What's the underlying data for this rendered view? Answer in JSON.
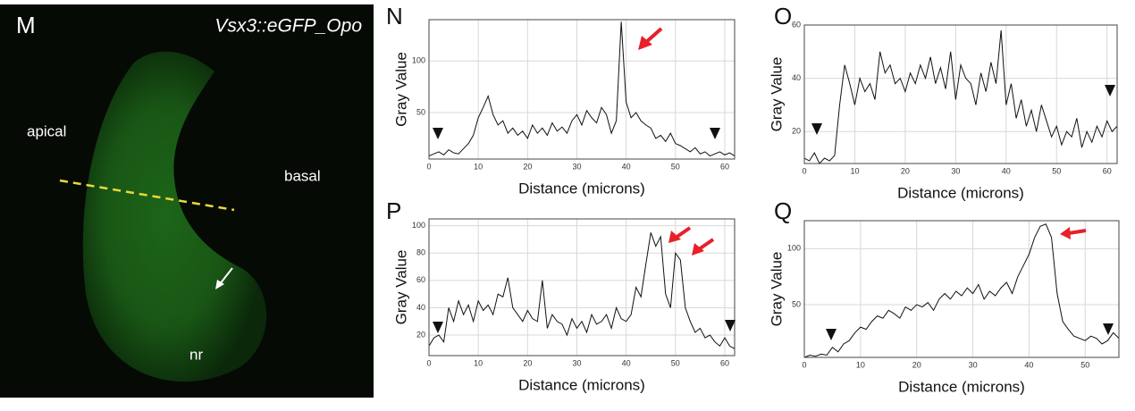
{
  "image_panel": {
    "panel_label": "M",
    "title": "Vsx3::eGFP_Opo",
    "label_apical": "apical",
    "label_basal": "basal",
    "label_nr": "nr"
  },
  "chart_data": [
    {
      "type": "line",
      "panel_label": "N",
      "xlabel": "Distance (microns)",
      "ylabel": "Gray Value",
      "grid": true,
      "xlim": [
        0,
        62
      ],
      "ylim": [
        5,
        140
      ],
      "xticks": [
        0,
        10,
        20,
        30,
        40,
        50,
        60
      ],
      "yticks": [
        50,
        100
      ],
      "x": [
        0,
        1,
        2,
        3,
        4,
        5,
        6,
        7,
        8,
        9,
        10,
        11,
        12,
        13,
        14,
        15,
        16,
        17,
        18,
        19,
        20,
        21,
        22,
        23,
        24,
        25,
        26,
        27,
        28,
        29,
        30,
        31,
        32,
        33,
        34,
        35,
        36,
        37,
        38,
        39,
        40,
        41,
        42,
        43,
        44,
        45,
        46,
        47,
        48,
        49,
        50,
        51,
        52,
        53,
        54,
        55,
        56,
        57,
        58,
        59,
        60,
        61,
        62
      ],
      "series": [
        {
          "color": "#111111",
          "values": [
            8,
            10,
            12,
            9,
            14,
            11,
            10,
            15,
            20,
            28,
            45,
            55,
            66,
            48,
            38,
            42,
            30,
            35,
            28,
            32,
            25,
            38,
            30,
            35,
            28,
            40,
            32,
            36,
            30,
            42,
            48,
            38,
            52,
            45,
            40,
            55,
            48,
            30,
            42,
            138,
            60,
            45,
            50,
            42,
            38,
            35,
            25,
            28,
            22,
            30,
            20,
            18,
            15,
            12,
            16,
            10,
            12,
            8,
            10,
            12,
            9,
            11,
            8
          ]
        }
      ]
    },
    {
      "type": "line",
      "panel_label": "O",
      "xlabel": "Distance (microns)",
      "ylabel": "Gray Value",
      "grid": true,
      "xlim": [
        0,
        62
      ],
      "ylim": [
        8,
        60
      ],
      "xticks": [
        0,
        10,
        20,
        30,
        40,
        50,
        60
      ],
      "yticks": [
        20,
        40,
        60
      ],
      "x": [
        0,
        1,
        2,
        3,
        4,
        5,
        6,
        7,
        8,
        9,
        10,
        11,
        12,
        13,
        14,
        15,
        16,
        17,
        18,
        19,
        20,
        21,
        22,
        23,
        24,
        25,
        26,
        27,
        28,
        29,
        30,
        31,
        32,
        33,
        34,
        35,
        36,
        37,
        38,
        39,
        40,
        41,
        42,
        43,
        44,
        45,
        46,
        47,
        48,
        49,
        50,
        51,
        52,
        53,
        54,
        55,
        56,
        57,
        58,
        59,
        60,
        61,
        62
      ],
      "series": [
        {
          "color": "#111111",
          "values": [
            10,
            9,
            12,
            8,
            10,
            9,
            11,
            30,
            45,
            38,
            30,
            40,
            35,
            38,
            32,
            50,
            42,
            45,
            38,
            40,
            35,
            42,
            38,
            45,
            40,
            48,
            38,
            44,
            36,
            50,
            32,
            45,
            40,
            38,
            30,
            42,
            35,
            46,
            38,
            58,
            30,
            38,
            25,
            32,
            22,
            28,
            20,
            30,
            24,
            18,
            22,
            15,
            20,
            18,
            25,
            14,
            20,
            16,
            22,
            18,
            24,
            20,
            22
          ]
        }
      ]
    },
    {
      "type": "line",
      "panel_label": "P",
      "xlabel": "Distance (microns)",
      "ylabel": "Gray Value",
      "grid": true,
      "xlim": [
        0,
        62
      ],
      "ylim": [
        5,
        105
      ],
      "xticks": [
        0,
        10,
        20,
        30,
        40,
        50,
        60
      ],
      "yticks": [
        20,
        40,
        60,
        80,
        100
      ],
      "x": [
        0,
        1,
        2,
        3,
        4,
        5,
        6,
        7,
        8,
        9,
        10,
        11,
        12,
        13,
        14,
        15,
        16,
        17,
        18,
        19,
        20,
        21,
        22,
        23,
        24,
        25,
        26,
        27,
        28,
        29,
        30,
        31,
        32,
        33,
        34,
        35,
        36,
        37,
        38,
        39,
        40,
        41,
        42,
        43,
        44,
        45,
        46,
        47,
        48,
        49,
        50,
        51,
        52,
        53,
        54,
        55,
        56,
        57,
        58,
        59,
        60,
        61,
        62
      ],
      "series": [
        {
          "color": "#111111",
          "values": [
            12,
            18,
            20,
            15,
            40,
            30,
            45,
            35,
            42,
            30,
            45,
            38,
            42,
            35,
            50,
            48,
            62,
            40,
            35,
            30,
            38,
            32,
            30,
            60,
            25,
            35,
            30,
            28,
            20,
            32,
            25,
            30,
            22,
            35,
            28,
            30,
            35,
            25,
            40,
            32,
            30,
            35,
            55,
            48,
            72,
            95,
            85,
            92,
            50,
            40,
            80,
            75,
            40,
            30,
            22,
            25,
            18,
            20,
            15,
            12,
            18,
            12,
            10
          ]
        }
      ]
    },
    {
      "type": "line",
      "panel_label": "Q",
      "xlabel": "Distance (microns)",
      "ylabel": "Gray Value",
      "grid": true,
      "xlim": [
        0,
        56
      ],
      "ylim": [
        3,
        125
      ],
      "xticks": [
        0,
        10,
        20,
        30,
        40,
        50
      ],
      "yticks": [
        50,
        100
      ],
      "x": [
        0,
        1,
        2,
        3,
        4,
        5,
        6,
        7,
        8,
        9,
        10,
        11,
        12,
        13,
        14,
        15,
        16,
        17,
        18,
        19,
        20,
        21,
        22,
        23,
        24,
        25,
        26,
        27,
        28,
        29,
        30,
        31,
        32,
        33,
        34,
        35,
        36,
        37,
        38,
        39,
        40,
        41,
        42,
        43,
        44,
        45,
        46,
        47,
        48,
        49,
        50,
        51,
        52,
        53,
        54,
        55,
        56
      ],
      "series": [
        {
          "color": "#111111",
          "values": [
            3,
            5,
            4,
            6,
            5,
            12,
            8,
            15,
            18,
            25,
            30,
            28,
            35,
            40,
            38,
            45,
            42,
            38,
            48,
            45,
            50,
            48,
            52,
            45,
            55,
            60,
            55,
            62,
            58,
            65,
            60,
            68,
            55,
            62,
            58,
            65,
            70,
            60,
            75,
            85,
            95,
            110,
            120,
            122,
            110,
            60,
            35,
            28,
            22,
            20,
            18,
            22,
            20,
            15,
            18,
            25,
            20
          ]
        }
      ]
    }
  ]
}
